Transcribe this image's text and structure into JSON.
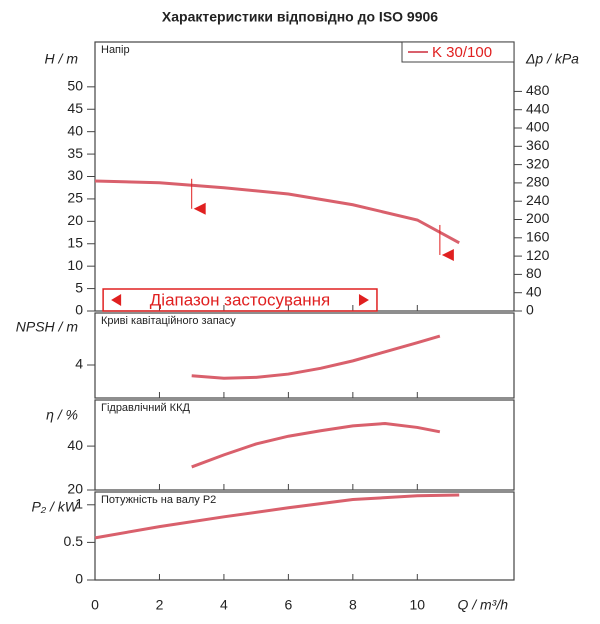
{
  "title": "Характеристики відповідно до ISO 9906",
  "xlabel": "Q / m³/h",
  "xlim": [
    0,
    13
  ],
  "xticks": [
    0,
    2,
    4,
    6,
    8,
    10
  ],
  "chart_data": [
    {
      "type": "line",
      "title": "Напір",
      "ylabel": "H / m",
      "ylim": [
        0,
        60
      ],
      "yticks": [
        0,
        5,
        10,
        15,
        20,
        25,
        30,
        35,
        40,
        45,
        50
      ],
      "y2label": "Δp / kPa",
      "y2lim": [
        0,
        588
      ],
      "y2ticks": [
        0,
        40,
        80,
        120,
        160,
        200,
        240,
        280,
        320,
        360,
        400,
        440,
        480
      ],
      "legend": "top-right",
      "band_label": "Діапазон застосування",
      "band": [
        0.5,
        8.5
      ],
      "markers": [
        {
          "x": 3,
          "y": 22.8
        },
        {
          "x": 10.7,
          "y": 12.5
        }
      ],
      "series": [
        {
          "name": "K 30/100",
          "color": "#d9606c",
          "x": [
            0,
            2,
            4,
            6,
            8,
            10,
            11.3
          ],
          "values": [
            29.0,
            28.6,
            27.5,
            26.1,
            23.7,
            20.3,
            15.2
          ]
        }
      ]
    },
    {
      "type": "line",
      "title": "Криві кавітаційного запасу",
      "ylabel": "NPSH / m",
      "ylim": [
        0,
        10.3
      ],
      "yticks": [
        4
      ],
      "series": [
        {
          "color": "#d9606c",
          "x": [
            3,
            4,
            5,
            6,
            7,
            8,
            9,
            10,
            10.7
          ],
          "values": [
            2.7,
            2.4,
            2.5,
            2.9,
            3.6,
            4.5,
            5.6,
            6.7,
            7.5
          ]
        }
      ]
    },
    {
      "type": "line",
      "title": "Гідравлічний ККД",
      "ylabel": "η / %",
      "ylim": [
        20,
        61
      ],
      "yticks": [
        20,
        40
      ],
      "series": [
        {
          "color": "#d9606c",
          "x": [
            3,
            4,
            5,
            6,
            7,
            8,
            9,
            10,
            10.7
          ],
          "values": [
            30.5,
            36,
            41,
            44.5,
            47,
            49.2,
            50.3,
            48.5,
            46.5
          ]
        }
      ]
    },
    {
      "type": "line",
      "title": "Потужність на валу P2",
      "ylabel": "P₂ / kW",
      "ylim": [
        0,
        1.17
      ],
      "yticks": [
        0,
        0.5,
        1
      ],
      "series": [
        {
          "color": "#d9606c",
          "x": [
            0,
            2,
            4,
            6,
            8,
            10,
            11.3
          ],
          "values": [
            0.56,
            0.71,
            0.84,
            0.96,
            1.07,
            1.12,
            1.13
          ]
        }
      ]
    }
  ]
}
